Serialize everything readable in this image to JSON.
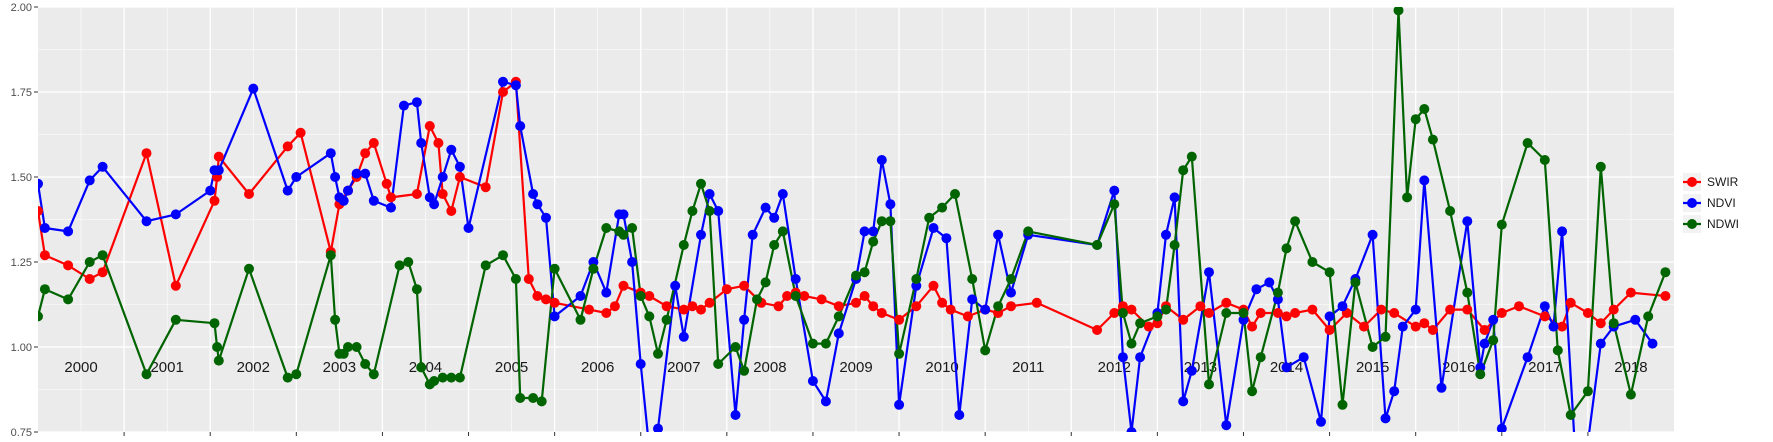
{
  "chart_data": {
    "type": "line",
    "title": "",
    "xlabel": "",
    "ylabel": "",
    "ylim": [
      0.75,
      2.0
    ],
    "yticks": [
      "0.75",
      "1.00",
      "1.25",
      "1.50",
      "1.75",
      "2.00"
    ],
    "xlim": [
      2000.0,
      2019.0
    ],
    "grid": true,
    "legend_position": "right",
    "year_labels": [
      "2000",
      "2001",
      "2002",
      "2003",
      "2004",
      "2005",
      "2006",
      "2007",
      "2008",
      "2009",
      "2010",
      "2011",
      "2012",
      "2013",
      "2014",
      "2015",
      "2016",
      "2017",
      "2018"
    ],
    "series": [
      {
        "name": "SWIR",
        "color": "#ff0000",
        "x": [
          2000.0,
          2000.08,
          2000.35,
          2000.6,
          2000.75,
          2001.26,
          2001.6,
          2002.05,
          2002.08,
          2002.1,
          2002.45,
          2002.9,
          2003.05,
          2003.4,
          2003.5,
          2003.6,
          2003.7,
          2003.8,
          2003.9,
          2004.05,
          2004.1,
          2004.4,
          2004.55,
          2004.65,
          2004.7,
          2004.8,
          2004.9,
          2005.2,
          2005.4,
          2005.55,
          2005.7,
          2005.8,
          2005.9,
          2006.0,
          2006.4,
          2006.6,
          2006.7,
          2006.8,
          2007.0,
          2007.1,
          2007.3,
          2007.5,
          2007.6,
          2007.7,
          2007.8,
          2008.0,
          2008.2,
          2008.4,
          2008.6,
          2008.7,
          2008.8,
          2008.9,
          2009.1,
          2009.3,
          2009.5,
          2009.6,
          2009.7,
          2009.8,
          2010.0,
          2010.2,
          2010.4,
          2010.5,
          2010.6,
          2010.8,
          2011.0,
          2011.15,
          2011.3,
          2011.6,
          2012.3,
          2012.5,
          2012.6,
          2012.7,
          2012.9,
          2013.0,
          2013.1,
          2013.3,
          2013.5,
          2013.6,
          2013.8,
          2014.0,
          2014.1,
          2014.2,
          2014.4,
          2014.5,
          2014.6,
          2014.8,
          2015.0,
          2015.2,
          2015.4,
          2015.6,
          2015.75,
          2016.0,
          2016.1,
          2016.2,
          2016.4,
          2016.6,
          2016.8,
          2017.0,
          2017.2,
          2017.5,
          2017.7,
          2017.8,
          2018.0,
          2018.15,
          2018.3,
          2018.5,
          2018.9
        ],
        "y": [
          1.4,
          1.27,
          1.24,
          1.2,
          1.22,
          1.57,
          1.18,
          1.43,
          1.5,
          1.56,
          1.45,
          1.59,
          1.63,
          1.28,
          1.42,
          1.46,
          1.5,
          1.57,
          1.6,
          1.48,
          1.44,
          1.45,
          1.65,
          1.6,
          1.45,
          1.4,
          1.5,
          1.47,
          1.75,
          1.78,
          1.2,
          1.15,
          1.14,
          1.13,
          1.11,
          1.1,
          1.12,
          1.18,
          1.16,
          1.15,
          1.12,
          1.11,
          1.12,
          1.11,
          1.13,
          1.17,
          1.18,
          1.13,
          1.12,
          1.15,
          1.16,
          1.15,
          1.14,
          1.12,
          1.13,
          1.15,
          1.12,
          1.1,
          1.08,
          1.12,
          1.18,
          1.13,
          1.11,
          1.09,
          1.11,
          1.1,
          1.12,
          1.13,
          1.05,
          1.1,
          1.12,
          1.11,
          1.06,
          1.07,
          1.12,
          1.08,
          1.12,
          1.1,
          1.13,
          1.11,
          1.06,
          1.1,
          1.1,
          1.09,
          1.1,
          1.11,
          1.05,
          1.1,
          1.06,
          1.11,
          1.1,
          1.06,
          1.07,
          1.05,
          1.11,
          1.11,
          1.05,
          1.1,
          1.12,
          1.09,
          1.06,
          1.13,
          1.1,
          1.07,
          1.11,
          1.16,
          1.15
        ]
      },
      {
        "name": "NDVI",
        "color": "#0000ff",
        "x": [
          2000.0,
          2000.08,
          2000.35,
          2000.6,
          2000.75,
          2001.26,
          2001.6,
          2002.0,
          2002.05,
          2002.1,
          2002.5,
          2002.9,
          2003.0,
          2003.4,
          2003.45,
          2003.5,
          2003.55,
          2003.6,
          2003.7,
          2003.8,
          2003.9,
          2004.1,
          2004.25,
          2004.4,
          2004.45,
          2004.55,
          2004.6,
          2004.7,
          2004.8,
          2004.9,
          2005.0,
          2005.4,
          2005.55,
          2005.6,
          2005.75,
          2005.8,
          2005.9,
          2006.0,
          2006.3,
          2006.45,
          2006.6,
          2006.75,
          2006.8,
          2006.9,
          2007.0,
          2007.1,
          2007.2,
          2007.4,
          2007.5,
          2007.7,
          2007.8,
          2007.9,
          2008.1,
          2008.2,
          2008.3,
          2008.45,
          2008.55,
          2008.65,
          2008.8,
          2009.0,
          2009.15,
          2009.3,
          2009.5,
          2009.6,
          2009.7,
          2009.8,
          2009.9,
          2010.0,
          2010.2,
          2010.4,
          2010.55,
          2010.7,
          2010.85,
          2011.0,
          2011.15,
          2011.3,
          2011.5,
          2012.3,
          2012.5,
          2012.6,
          2012.7,
          2012.8,
          2013.0,
          2013.1,
          2013.2,
          2013.3,
          2013.4,
          2013.6,
          2013.8,
          2014.0,
          2014.15,
          2014.3,
          2014.4,
          2014.5,
          2014.7,
          2014.9,
          2015.0,
          2015.15,
          2015.3,
          2015.5,
          2015.65,
          2015.75,
          2015.85,
          2016.0,
          2016.1,
          2016.3,
          2016.6,
          2016.75,
          2016.8,
          2016.9,
          2017.0,
          2017.3,
          2017.5,
          2017.6,
          2017.7,
          2017.85,
          2018.0,
          2018.15,
          2018.3,
          2018.55,
          2018.75
        ],
        "y": [
          1.48,
          1.35,
          1.34,
          1.49,
          1.53,
          1.37,
          1.39,
          1.46,
          1.52,
          1.52,
          1.76,
          1.46,
          1.5,
          1.57,
          1.5,
          1.44,
          1.43,
          1.46,
          1.51,
          1.51,
          1.43,
          1.41,
          1.71,
          1.72,
          1.6,
          1.44,
          1.42,
          1.5,
          1.58,
          1.53,
          1.35,
          1.78,
          1.77,
          1.65,
          1.45,
          1.42,
          1.38,
          1.09,
          1.15,
          1.25,
          1.16,
          1.39,
          1.39,
          1.25,
          0.95,
          0.7,
          0.76,
          1.18,
          1.03,
          1.33,
          1.45,
          1.4,
          0.8,
          1.08,
          1.33,
          1.41,
          1.38,
          1.45,
          1.2,
          0.9,
          0.84,
          1.04,
          1.2,
          1.34,
          1.34,
          1.55,
          1.42,
          0.83,
          1.18,
          1.35,
          1.32,
          0.8,
          1.14,
          1.11,
          1.33,
          1.16,
          1.33,
          1.3,
          1.46,
          0.97,
          0.75,
          0.97,
          1.1,
          1.33,
          1.44,
          0.84,
          0.93,
          1.22,
          0.77,
          1.08,
          1.17,
          1.19,
          1.14,
          0.94,
          0.97,
          0.78,
          1.09,
          1.12,
          1.2,
          1.33,
          0.79,
          0.87,
          1.06,
          1.11,
          1.49,
          0.88,
          1.37,
          0.94,
          1.01,
          1.08,
          0.76,
          0.97,
          1.12,
          1.06,
          1.34,
          0.7,
          0.72,
          1.01,
          1.06,
          1.08,
          1.01
        ]
      },
      {
        "name": "NDWI",
        "color": "#006400",
        "x": [
          2000.0,
          2000.08,
          2000.35,
          2000.6,
          2000.75,
          2001.26,
          2001.6,
          2002.05,
          2002.08,
          2002.1,
          2002.45,
          2002.9,
          2003.0,
          2003.4,
          2003.45,
          2003.5,
          2003.55,
          2003.6,
          2003.7,
          2003.8,
          2003.9,
          2004.2,
          2004.3,
          2004.4,
          2004.45,
          2004.55,
          2004.6,
          2004.7,
          2004.8,
          2004.9,
          2005.2,
          2005.4,
          2005.55,
          2005.6,
          2005.75,
          2005.85,
          2006.0,
          2006.3,
          2006.45,
          2006.6,
          2006.75,
          2006.8,
          2006.9,
          2007.0,
          2007.1,
          2007.2,
          2007.3,
          2007.5,
          2007.6,
          2007.7,
          2007.8,
          2007.9,
          2008.1,
          2008.2,
          2008.35,
          2008.45,
          2008.55,
          2008.65,
          2008.8,
          2009.0,
          2009.15,
          2009.3,
          2009.5,
          2009.6,
          2009.7,
          2009.8,
          2009.9,
          2010.0,
          2010.2,
          2010.35,
          2010.5,
          2010.65,
          2010.85,
          2011.0,
          2011.15,
          2011.3,
          2011.5,
          2012.3,
          2012.5,
          2012.6,
          2012.7,
          2012.8,
          2013.0,
          2013.1,
          2013.2,
          2013.3,
          2013.4,
          2013.6,
          2013.8,
          2014.0,
          2014.1,
          2014.2,
          2014.4,
          2014.5,
          2014.6,
          2014.8,
          2015.0,
          2015.15,
          2015.3,
          2015.5,
          2015.65,
          2015.8,
          2015.9,
          2016.0,
          2016.1,
          2016.2,
          2016.4,
          2016.6,
          2016.75,
          2016.9,
          2017.0,
          2017.3,
          2017.5,
          2017.65,
          2017.8,
          2018.0,
          2018.15,
          2018.3,
          2018.5,
          2018.7,
          2018.9
        ],
        "y": [
          1.09,
          1.17,
          1.14,
          1.25,
          1.27,
          0.92,
          1.08,
          1.07,
          1.0,
          0.96,
          1.23,
          0.91,
          0.92,
          1.27,
          1.08,
          0.98,
          0.98,
          1.0,
          1.0,
          0.95,
          0.92,
          1.24,
          1.25,
          1.17,
          0.94,
          0.89,
          0.9,
          0.91,
          0.91,
          0.91,
          1.24,
          1.27,
          1.2,
          0.85,
          0.85,
          0.84,
          1.23,
          1.08,
          1.23,
          1.35,
          1.34,
          1.33,
          1.35,
          1.15,
          1.09,
          0.98,
          1.08,
          1.3,
          1.4,
          1.48,
          1.4,
          0.95,
          1.0,
          0.93,
          1.14,
          1.19,
          1.3,
          1.34,
          1.15,
          1.01,
          1.01,
          1.09,
          1.21,
          1.22,
          1.31,
          1.37,
          1.37,
          0.98,
          1.2,
          1.38,
          1.41,
          1.45,
          1.2,
          0.99,
          1.12,
          1.2,
          1.34,
          1.3,
          1.42,
          1.1,
          1.01,
          1.07,
          1.09,
          1.11,
          1.3,
          1.52,
          1.56,
          0.89,
          1.1,
          1.1,
          0.87,
          0.97,
          1.16,
          1.29,
          1.37,
          1.25,
          1.22,
          0.83,
          1.19,
          1.0,
          1.03,
          1.99,
          1.44,
          1.67,
          1.7,
          1.61,
          1.4,
          1.16,
          0.92,
          1.02,
          1.36,
          1.6,
          1.55,
          0.99,
          0.8,
          0.87,
          1.53,
          1.07,
          0.86,
          1.09,
          1.22
        ]
      }
    ]
  }
}
